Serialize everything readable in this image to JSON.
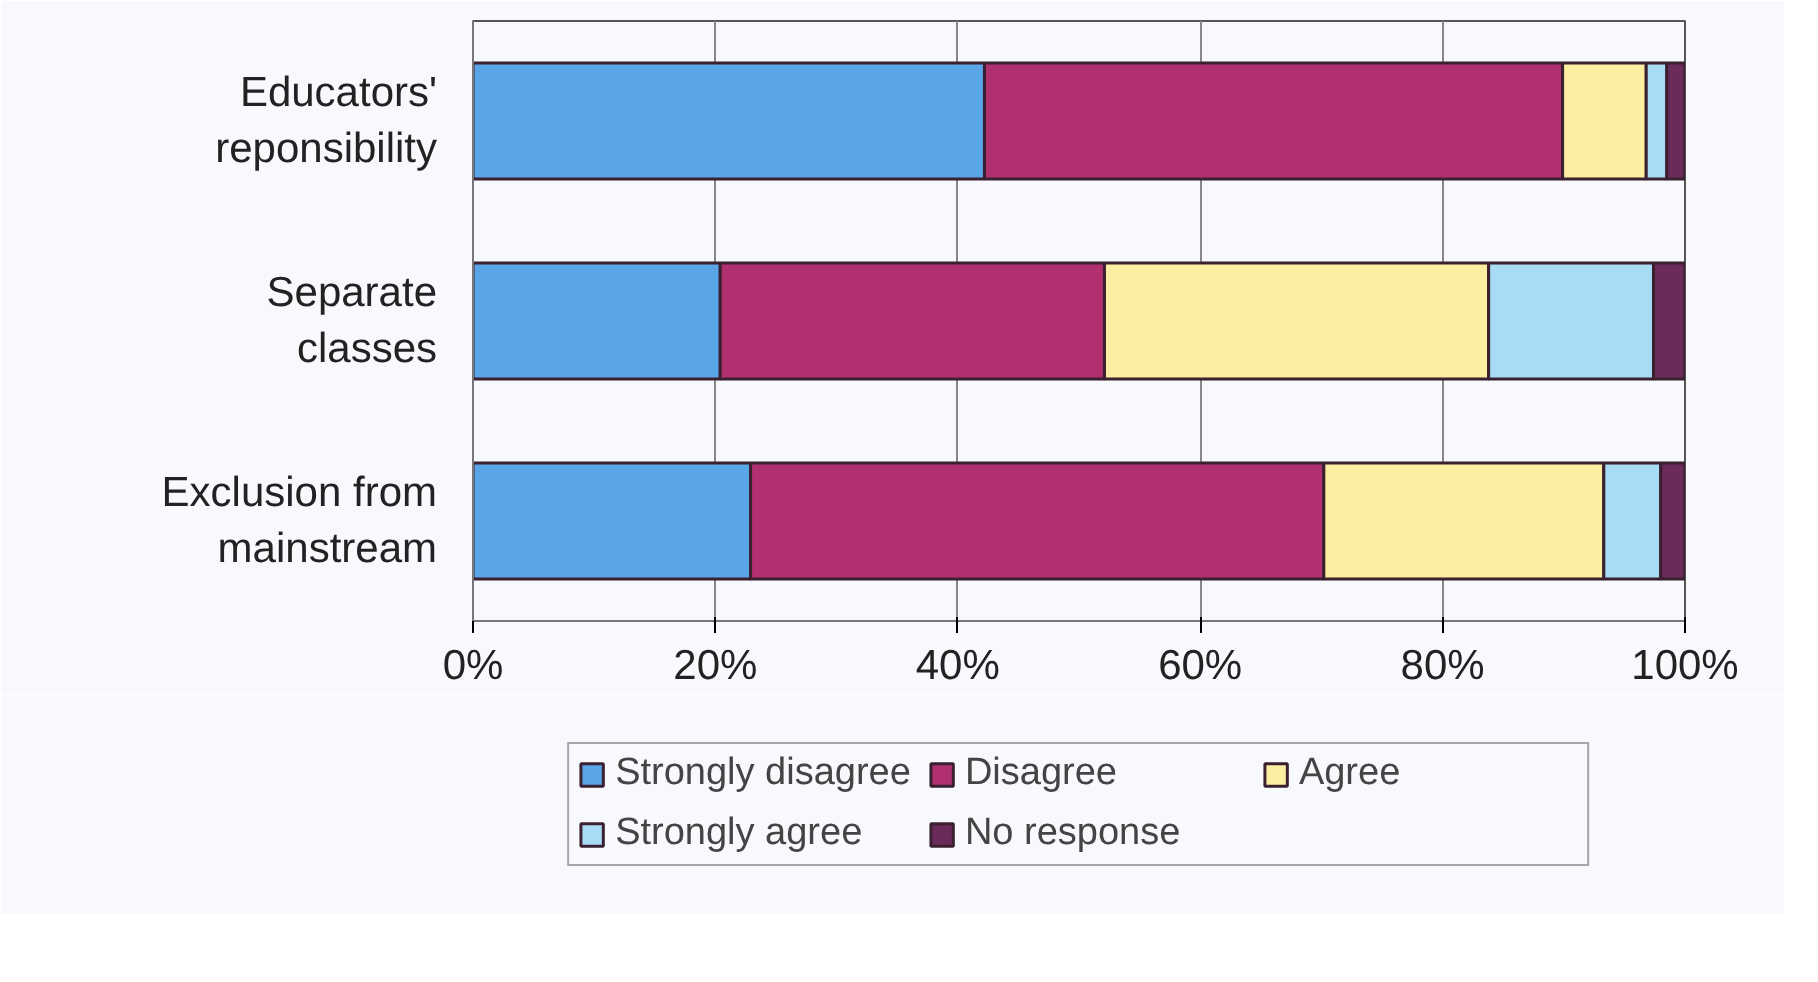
{
  "chart_data": {
    "type": "bar",
    "orientation": "horizontal",
    "stacked": true,
    "categories": [
      "Educators' reponsibility",
      "Separate classes",
      "Exclusion from mainstream"
    ],
    "series": [
      {
        "name": "Strongly disagree",
        "color": "#5aa5e6",
        "values": [
          42.2,
          20.4,
          22.9
        ]
      },
      {
        "name": "Disagree",
        "color": "#b03070",
        "values": [
          47.7,
          31.7,
          47.3
        ]
      },
      {
        "name": "Agree",
        "color": "#fbeea0",
        "values": [
          6.9,
          31.7,
          23.1
        ]
      },
      {
        "name": "Strongly agree",
        "color": "#a8dcf5",
        "values": [
          1.7,
          13.6,
          4.7
        ]
      },
      {
        "name": "No response",
        "color": "#6a2a5a",
        "values": [
          1.5,
          2.6,
          2.0
        ]
      }
    ],
    "xlim": [
      0,
      100
    ],
    "xticks": [
      {
        "value": 0,
        "label": "0%"
      },
      {
        "value": 20,
        "label": "20%"
      },
      {
        "value": 40,
        "label": "40%"
      },
      {
        "value": 60,
        "label": "60%"
      },
      {
        "value": 80,
        "label": "80%"
      },
      {
        "value": 100,
        "label": "100%"
      }
    ],
    "grid": "x",
    "legend": "bottom"
  }
}
